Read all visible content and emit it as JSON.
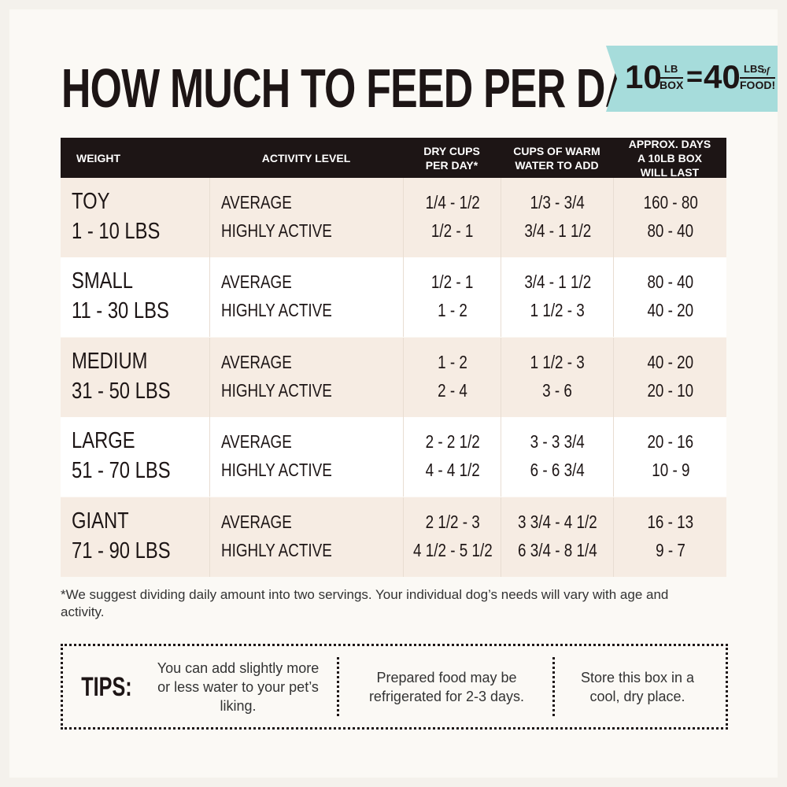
{
  "header": {
    "title": "HOW MUCH TO FEED PER DAY",
    "badge": {
      "box_amount": "10",
      "box_unit_top": "LB",
      "box_unit_bottom": "BOX",
      "equals": "=",
      "food_amount": "40",
      "food_unit_top": "LBS",
      "food_unit_of": "of",
      "food_unit_bottom": "FOOD!"
    }
  },
  "table": {
    "headers": [
      "WEIGHT",
      "ACTIVITY LEVEL",
      "DRY CUPS PER DAY*",
      "CUPS OF WARM WATER TO ADD",
      "APPROX. DAYS A 10LB BOX WILL LAST"
    ],
    "rows": [
      {
        "size": "TOY",
        "range": "1 - 10 LBS",
        "activity": [
          "AVERAGE",
          "HIGHLY ACTIVE"
        ],
        "dry": [
          "1/4 - 1/2",
          "1/2 - 1"
        ],
        "water": [
          "1/3 - 3/4",
          "3/4 - 1 1/2"
        ],
        "days": [
          "160 - 80",
          "80 - 40"
        ]
      },
      {
        "size": "SMALL",
        "range": "11 - 30 LBS",
        "activity": [
          "AVERAGE",
          "HIGHLY ACTIVE"
        ],
        "dry": [
          "1/2 - 1",
          "1 - 2"
        ],
        "water": [
          "3/4 - 1 1/2",
          "1 1/2 - 3"
        ],
        "days": [
          "80 - 40",
          "40 - 20"
        ]
      },
      {
        "size": "MEDIUM",
        "range": "31 - 50 LBS",
        "activity": [
          "AVERAGE",
          "HIGHLY ACTIVE"
        ],
        "dry": [
          "1 - 2",
          "2 - 4"
        ],
        "water": [
          "1 1/2 - 3",
          "3 - 6"
        ],
        "days": [
          "40 - 20",
          "20 - 10"
        ]
      },
      {
        "size": "LARGE",
        "range": "51 - 70 LBS",
        "activity": [
          "AVERAGE",
          "HIGHLY ACTIVE"
        ],
        "dry": [
          "2 - 2 1/2",
          "4 - 4 1/2"
        ],
        "water": [
          "3 - 3 3/4",
          "6 - 6 3/4"
        ],
        "days": [
          "20 - 16",
          "10 - 9"
        ]
      },
      {
        "size": "GIANT",
        "range": "71 - 90 LBS",
        "activity": [
          "AVERAGE",
          "HIGHLY ACTIVE"
        ],
        "dry": [
          "2 1/2 - 3",
          "4 1/2 - 5 1/2"
        ],
        "water": [
          "3 3/4 - 4 1/2",
          "6 3/4 - 8 1/4"
        ],
        "days": [
          "16 - 13",
          "9 - 7"
        ]
      }
    ]
  },
  "footnote": "*We suggest dividing daily amount into two servings. Your individual dog’s needs will vary with age and activity.",
  "tips": {
    "label": "TIPS:",
    "items": [
      "You can add slightly more or less water to your pet’s liking.",
      "Prepared food may be refrigerated for 2-3 days.",
      "Store this box in a cool, dry place."
    ]
  }
}
